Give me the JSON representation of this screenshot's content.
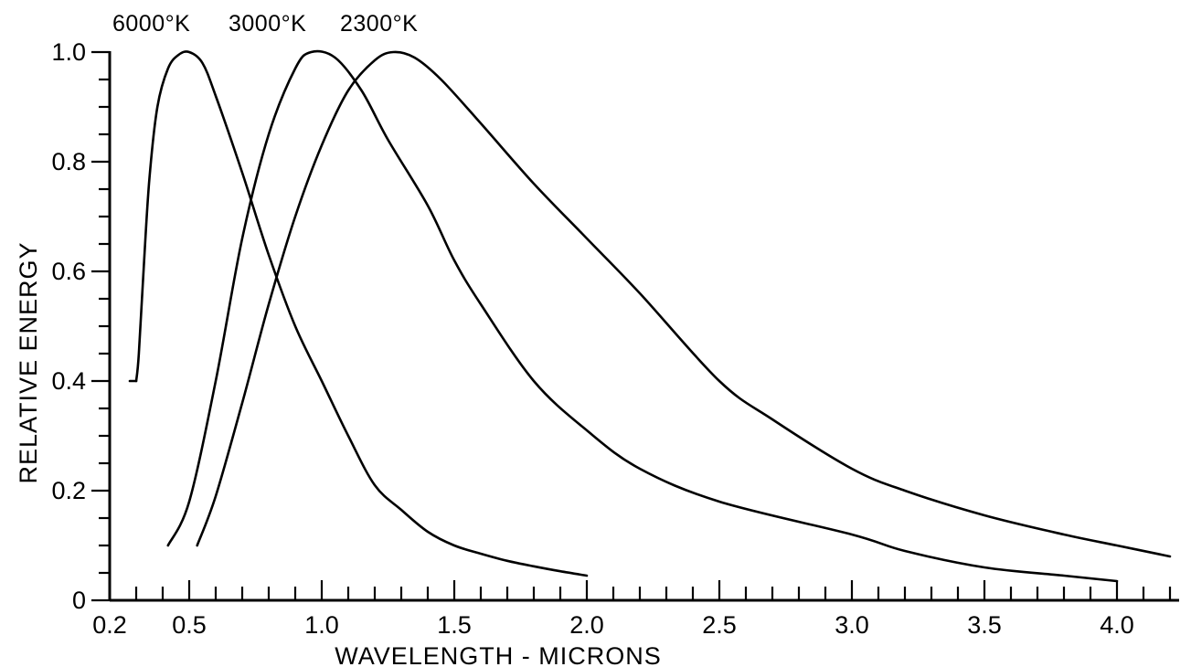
{
  "chart_data": {
    "type": "line",
    "xlabel": "WAVELENGTH - MICRONS",
    "ylabel": "RELATIVE ENERGY",
    "xlim": [
      0.2,
      4.2
    ],
    "ylim": [
      0,
      1.0
    ],
    "x_ticks": [
      "0.2",
      "0.5",
      "1.0",
      "1.5",
      "2.0",
      "2.5",
      "3.0",
      "3.5",
      "4.0"
    ],
    "y_ticks": [
      "0",
      "0.2",
      "0.4",
      "0.6",
      "0.8",
      "1.0"
    ],
    "grid": false,
    "series": [
      {
        "name": "6000°K",
        "points": [
          [
            0.3,
            0.4
          ],
          [
            0.31,
            0.45
          ],
          [
            0.33,
            0.62
          ],
          [
            0.35,
            0.77
          ],
          [
            0.38,
            0.9
          ],
          [
            0.42,
            0.97
          ],
          [
            0.46,
            0.995
          ],
          [
            0.5,
            1.0
          ],
          [
            0.55,
            0.98
          ],
          [
            0.6,
            0.92
          ],
          [
            0.7,
            0.78
          ],
          [
            0.8,
            0.63
          ],
          [
            0.9,
            0.5
          ],
          [
            1.0,
            0.4
          ],
          [
            1.1,
            0.3
          ],
          [
            1.2,
            0.21
          ],
          [
            1.3,
            0.165
          ],
          [
            1.4,
            0.125
          ],
          [
            1.5,
            0.1
          ],
          [
            1.6,
            0.085
          ],
          [
            1.7,
            0.072
          ],
          [
            1.8,
            0.062
          ],
          [
            1.9,
            0.053
          ],
          [
            2.0,
            0.045
          ]
        ]
      },
      {
        "name": "3000°K",
        "points": [
          [
            0.42,
            0.1
          ],
          [
            0.5,
            0.18
          ],
          [
            0.6,
            0.4
          ],
          [
            0.7,
            0.66
          ],
          [
            0.8,
            0.85
          ],
          [
            0.9,
            0.97
          ],
          [
            0.96,
            1.0
          ],
          [
            1.05,
            0.99
          ],
          [
            1.15,
            0.93
          ],
          [
            1.25,
            0.84
          ],
          [
            1.4,
            0.72
          ],
          [
            1.5,
            0.62
          ],
          [
            1.6,
            0.54
          ],
          [
            1.8,
            0.4
          ],
          [
            2.0,
            0.31
          ],
          [
            2.2,
            0.24
          ],
          [
            2.5,
            0.18
          ],
          [
            3.0,
            0.12
          ],
          [
            3.2,
            0.09
          ],
          [
            3.5,
            0.06
          ],
          [
            3.8,
            0.045
          ],
          [
            4.0,
            0.035
          ]
        ]
      },
      {
        "name": "2300°K",
        "points": [
          [
            0.53,
            0.1
          ],
          [
            0.6,
            0.19
          ],
          [
            0.7,
            0.36
          ],
          [
            0.8,
            0.54
          ],
          [
            0.9,
            0.7
          ],
          [
            1.0,
            0.83
          ],
          [
            1.1,
            0.93
          ],
          [
            1.2,
            0.985
          ],
          [
            1.27,
            1.0
          ],
          [
            1.35,
            0.99
          ],
          [
            1.45,
            0.95
          ],
          [
            1.6,
            0.87
          ],
          [
            1.8,
            0.76
          ],
          [
            2.0,
            0.66
          ],
          [
            2.2,
            0.56
          ],
          [
            2.5,
            0.4
          ],
          [
            2.7,
            0.33
          ],
          [
            3.0,
            0.24
          ],
          [
            3.2,
            0.2
          ],
          [
            3.5,
            0.155
          ],
          [
            3.8,
            0.12
          ],
          [
            4.0,
            0.1
          ],
          [
            4.2,
            0.08
          ]
        ]
      }
    ]
  }
}
